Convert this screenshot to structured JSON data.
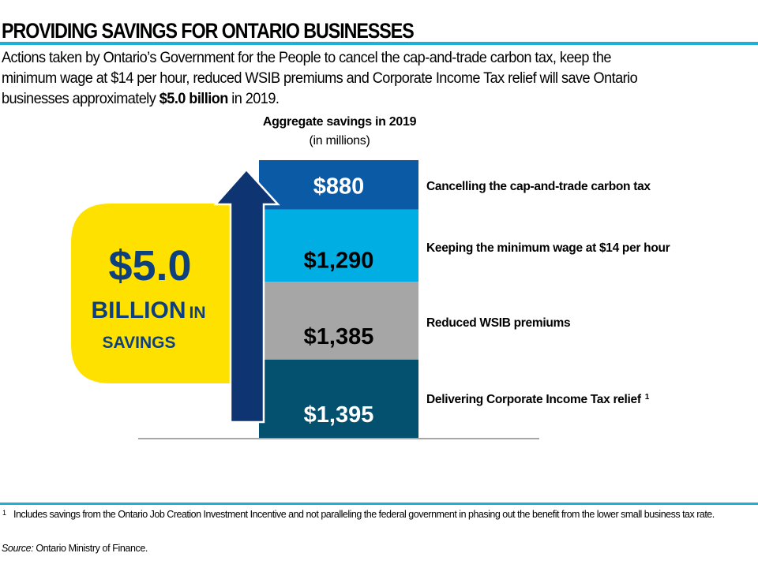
{
  "header": {
    "title": "PROVIDING SAVINGS FOR ONTARIO BUSINESSES",
    "intro_part1": "Actions taken by Ontario’s Government for the People to cancel the cap-and-trade carbon tax, keep the",
    "intro_part2": "minimum wage at $14 per hour, reduced WSIB premiums and Corporate Income Tax relief will save Ontario",
    "intro_part3_pre": "businesses approximately ",
    "intro_part3_bold": "$5.0 billion",
    "intro_part3_post": " in 2019."
  },
  "callout": {
    "amount": "$5.0",
    "line2_big": "BILLION",
    "line2_small": "IN",
    "line3": "SAVINGS"
  },
  "colors": {
    "accent_rule": "#1fb0d8",
    "callout_yellow": "#ffe100",
    "callout_text": "#0e3f7e",
    "arrow": "#0e3572"
  },
  "chart_data": {
    "type": "bar",
    "stacked": true,
    "title": "Aggregate savings in 2019",
    "subtitle": "(in millions)",
    "unit": "millions of dollars",
    "categories": [
      "Cancelling the cap-and-trade carbon tax",
      "Keeping the minimum wage at $14 per hour",
      "Reduced WSIB premiums",
      "Delivering Corporate  Income Tax relief"
    ],
    "footnote_marks": [
      "",
      "",
      "",
      "1"
    ],
    "values": [
      880,
      1290,
      1385,
      1395
    ],
    "value_labels": [
      "$880",
      "$1,290",
      "$1,385",
      "$1,395"
    ],
    "segment_colors": [
      "#0b5aa6",
      "#00aee3",
      "#a6a6a6",
      "#03506f"
    ],
    "label_colors": [
      "#ffffff",
      "#000000",
      "#000000",
      "#ffffff"
    ],
    "stack_order": "top-to-bottom",
    "total": 4950,
    "legend": "right"
  },
  "footer": {
    "footnote_mark": "1",
    "footnote_text": "Includes savings from the Ontario Job Creation Investment Incentive and not paralleling the federal government in phasing out the benefit from the lower small business tax rate.",
    "source_label": "Source:",
    "source_text": " Ontario Ministry of Finance."
  }
}
